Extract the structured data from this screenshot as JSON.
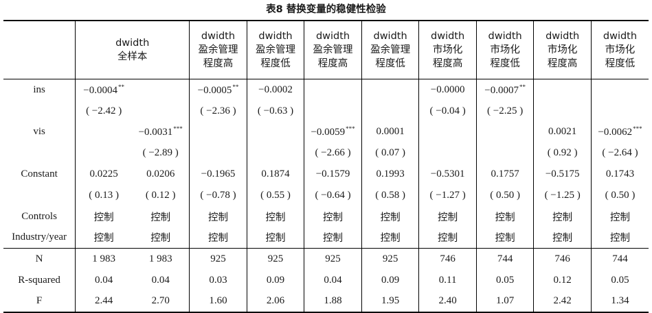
{
  "caption": "表8  替换变量的稳健性检验",
  "headers": [
    [
      "dwidth",
      "全样本"
    ],
    [
      "",
      ""
    ],
    [
      "dwidth",
      "盈余管理",
      "程度高"
    ],
    [
      "dwidth",
      "盈余管理",
      "程度低"
    ],
    [
      "dwidth",
      "盈余管理",
      "程度高"
    ],
    [
      "dwidth",
      "盈余管理",
      "程度低"
    ],
    [
      "dwidth",
      "市场化",
      "程度高"
    ],
    [
      "dwidth",
      "市场化",
      "程度低"
    ],
    [
      "dwidth",
      "市场化",
      "程度高"
    ],
    [
      "dwidth",
      "市场化",
      "程度低"
    ]
  ],
  "rows": [
    {
      "label": "ins",
      "cells": [
        {
          "v": "−0.0004",
          "s": "**"
        },
        {
          "v": ""
        },
        {
          "v": "−0.0005",
          "s": "**"
        },
        {
          "v": "−0.0002"
        },
        {
          "v": ""
        },
        {
          "v": ""
        },
        {
          "v": "−0.0000"
        },
        {
          "v": "−0.0007",
          "s": "**"
        },
        {
          "v": ""
        },
        {
          "v": ""
        }
      ]
    },
    {
      "label": "",
      "cells": [
        {
          "v": "( −2.42 )"
        },
        {
          "v": ""
        },
        {
          "v": "( −2.36 )"
        },
        {
          "v": "( −0.63 )"
        },
        {
          "v": ""
        },
        {
          "v": ""
        },
        {
          "v": "( −0.04 )"
        },
        {
          "v": "( −2.25 )"
        },
        {
          "v": ""
        },
        {
          "v": ""
        }
      ]
    },
    {
      "label": "vis",
      "cells": [
        {
          "v": ""
        },
        {
          "v": "−0.0031",
          "s": "***"
        },
        {
          "v": ""
        },
        {
          "v": ""
        },
        {
          "v": "−0.0059",
          "s": "***"
        },
        {
          "v": "0.0001"
        },
        {
          "v": ""
        },
        {
          "v": ""
        },
        {
          "v": "0.0021"
        },
        {
          "v": "−0.0062",
          "s": "***"
        }
      ]
    },
    {
      "label": "",
      "cells": [
        {
          "v": ""
        },
        {
          "v": "( −2.89 )"
        },
        {
          "v": ""
        },
        {
          "v": ""
        },
        {
          "v": "( −2.66 )"
        },
        {
          "v": "( 0.07 )"
        },
        {
          "v": ""
        },
        {
          "v": ""
        },
        {
          "v": "( 0.92 )"
        },
        {
          "v": "( −2.64 )"
        }
      ]
    },
    {
      "label": "Constant",
      "cells": [
        {
          "v": "0.0225"
        },
        {
          "v": "0.0206"
        },
        {
          "v": "−0.1965"
        },
        {
          "v": "0.1874"
        },
        {
          "v": "−0.1579"
        },
        {
          "v": "0.1993"
        },
        {
          "v": "−0.5301"
        },
        {
          "v": "0.1757"
        },
        {
          "v": "−0.5175"
        },
        {
          "v": "0.1743"
        }
      ]
    },
    {
      "label": "",
      "cells": [
        {
          "v": "( 0.13 )"
        },
        {
          "v": "( 0.12 )"
        },
        {
          "v": "( −0.78 )"
        },
        {
          "v": "( 0.55 )"
        },
        {
          "v": "( −0.64 )"
        },
        {
          "v": "( 0.58 )"
        },
        {
          "v": "( −1.27 )"
        },
        {
          "v": "( 0.50 )"
        },
        {
          "v": "( −1.25 )"
        },
        {
          "v": "( 0.50 )"
        }
      ]
    },
    {
      "label": "Controls",
      "cn": true,
      "cells": [
        {
          "v": "控制"
        },
        {
          "v": "控制"
        },
        {
          "v": "控制"
        },
        {
          "v": "控制"
        },
        {
          "v": "控制"
        },
        {
          "v": "控制"
        },
        {
          "v": "控制"
        },
        {
          "v": "控制"
        },
        {
          "v": "控制"
        },
        {
          "v": "控制"
        }
      ]
    },
    {
      "label": "Industry/year",
      "cn": true,
      "cells": [
        {
          "v": "控制"
        },
        {
          "v": "控制"
        },
        {
          "v": "控制"
        },
        {
          "v": "控制"
        },
        {
          "v": "控制"
        },
        {
          "v": "控制"
        },
        {
          "v": "控制"
        },
        {
          "v": "控制"
        },
        {
          "v": "控制"
        },
        {
          "v": "控制"
        }
      ]
    }
  ],
  "stats": [
    {
      "label": "N",
      "cells": [
        "1 983",
        "1 983",
        "925",
        "925",
        "925",
        "925",
        "746",
        "744",
        "746",
        "744"
      ]
    },
    {
      "label": "R-squared",
      "cells": [
        "0.04",
        "0.04",
        "0.03",
        "0.09",
        "0.04",
        "0.09",
        "0.11",
        "0.05",
        "0.12",
        "0.05"
      ]
    },
    {
      "label": "F",
      "cells": [
        "2.44",
        "2.70",
        "1.60",
        "2.06",
        "1.88",
        "1.95",
        "2.40",
        "1.07",
        "2.42",
        "1.34"
      ]
    }
  ]
}
